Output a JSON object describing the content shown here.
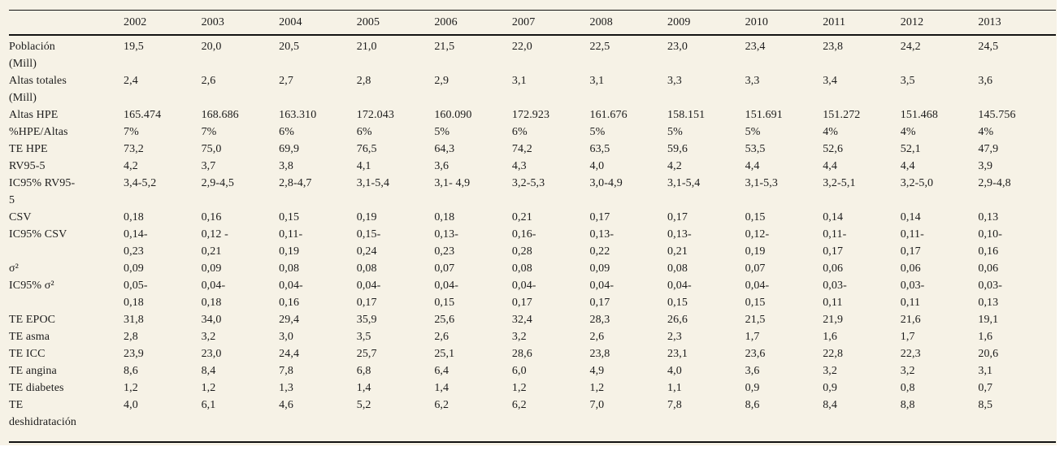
{
  "table": {
    "corner_label": "",
    "columns": [
      "2002",
      "2003",
      "2004",
      "2005",
      "2006",
      "2007",
      "2008",
      "2009",
      "2010",
      "2011",
      "2012",
      "2013"
    ],
    "rows": [
      {
        "label": "Población\n(Mill)",
        "values": [
          "19,5",
          "20,0",
          "20,5",
          "21,0",
          "21,5",
          "22,0",
          "22,5",
          "23,0",
          "23,4",
          "23,8",
          "24,2",
          "24,5"
        ]
      },
      {
        "label": "Altas totales\n(Mill)",
        "values": [
          "2,4",
          "2,6",
          "2,7",
          "2,8",
          "2,9",
          "3,1",
          "3,1",
          "3,3",
          "3,3",
          "3,4",
          "3,5",
          "3,6"
        ]
      },
      {
        "label": "Altas HPE",
        "values": [
          "165.474",
          "168.686",
          "163.310",
          "172.043",
          "160.090",
          "172.923",
          "161.676",
          "158.151",
          "151.691",
          "151.272",
          "151.468",
          "145.756"
        ]
      },
      {
        "label": "%HPE/Altas",
        "values": [
          "7%",
          "7%",
          "6%",
          "6%",
          "5%",
          "6%",
          "5%",
          "5%",
          "5%",
          "4%",
          "4%",
          "4%"
        ]
      },
      {
        "label": "TE HPE",
        "values": [
          "73,2",
          "75,0",
          "69,9",
          "76,5",
          "64,3",
          "74,2",
          "63,5",
          "59,6",
          "53,5",
          "52,6",
          "52,1",
          "47,9"
        ]
      },
      {
        "label": "RV95-5",
        "values": [
          "4,2",
          "3,7",
          "3,8",
          "4,1",
          "3,6",
          "4,3",
          "4,0",
          "4,2",
          "4,4",
          "4,4",
          "4,4",
          "3,9"
        ]
      },
      {
        "label": "IC95% RV95-\n5",
        "values": [
          "3,4-5,2",
          "2,9-4,5",
          "2,8-4,7",
          "3,1-5,4",
          "3,1- 4,9",
          "3,2-5,3",
          "3,0-4,9",
          "3,1-5,4",
          "3,1-5,3",
          "3,2-5,1",
          "3,2-5,0",
          "2,9-4,8"
        ]
      },
      {
        "label": "CSV",
        "values": [
          "0,18",
          "0,16",
          "0,15",
          "0,19",
          "0,18",
          "0,21",
          "0,17",
          "0,17",
          "0,15",
          "0,14",
          "0,14",
          "0,13"
        ]
      },
      {
        "label": "IC95% CSV",
        "values": [
          "0,14-\n0,23",
          "0,12 -\n0,21",
          "0,11-\n0,19",
          "0,15-\n0,24",
          "0,13-\n0,23",
          "0,16-\n0,28",
          "0,13-\n0,22",
          "0,13-\n0,21",
          "0,12-\n0,19",
          "0,11-\n0,17",
          "0,11-\n0,17",
          "0,10-\n0,16"
        ]
      },
      {
        "label": "σ²",
        "values": [
          "0,09",
          "0,09",
          "0,08",
          "0,08",
          "0,07",
          "0,08",
          "0,09",
          "0,08",
          "0,07",
          "0,06",
          "0,06",
          "0,06"
        ]
      },
      {
        "label": "IC95% σ²",
        "values": [
          "0,05-\n0,18",
          "0,04-\n0,18",
          "0,04-\n0,16",
          "0,04-\n0,17",
          "0,04-\n0,15",
          "0,04-\n0,17",
          "0,04-\n0,17",
          "0,04-\n0,15",
          "0,04-\n0,15",
          "0,03-\n0,11",
          "0,03-\n0,11",
          "0,03-\n0,13"
        ]
      },
      {
        "label": "TE EPOC",
        "values": [
          "31,8",
          "34,0",
          "29,4",
          "35,9",
          "25,6",
          "32,4",
          "28,3",
          "26,6",
          "21,5",
          "21,9",
          "21,6",
          "19,1"
        ]
      },
      {
        "label": "TE asma",
        "values": [
          "2,8",
          "3,2",
          "3,0",
          "3,5",
          "2,6",
          "3,2",
          "2,6",
          "2,3",
          "1,7",
          "1,6",
          "1,7",
          "1,6"
        ]
      },
      {
        "label": "TE ICC",
        "values": [
          "23,9",
          "23,0",
          "24,4",
          "25,7",
          "25,1",
          "28,6",
          "23,8",
          "23,1",
          "23,6",
          "22,8",
          "22,3",
          "20,6"
        ]
      },
      {
        "label": "TE angina",
        "values": [
          "8,6",
          "8,4",
          "7,8",
          "6,8",
          "6,4",
          "6,0",
          "4,9",
          "4,0",
          "3,6",
          "3,2",
          "3,2",
          "3,1"
        ]
      },
      {
        "label": "TE diabetes",
        "values": [
          "1,2",
          "1,2",
          "1,3",
          "1,4",
          "1,4",
          "1,2",
          "1,2",
          "1,1",
          "0,9",
          "0,9",
          "0,8",
          "0,7"
        ]
      },
      {
        "label": "TE\ndeshidratación",
        "values": [
          "4,0",
          "6,1",
          "4,6",
          "5,2",
          "6,2",
          "6,2",
          "7,0",
          "7,8",
          "8,6",
          "8,4",
          "8,8",
          "8,5"
        ]
      }
    ]
  }
}
